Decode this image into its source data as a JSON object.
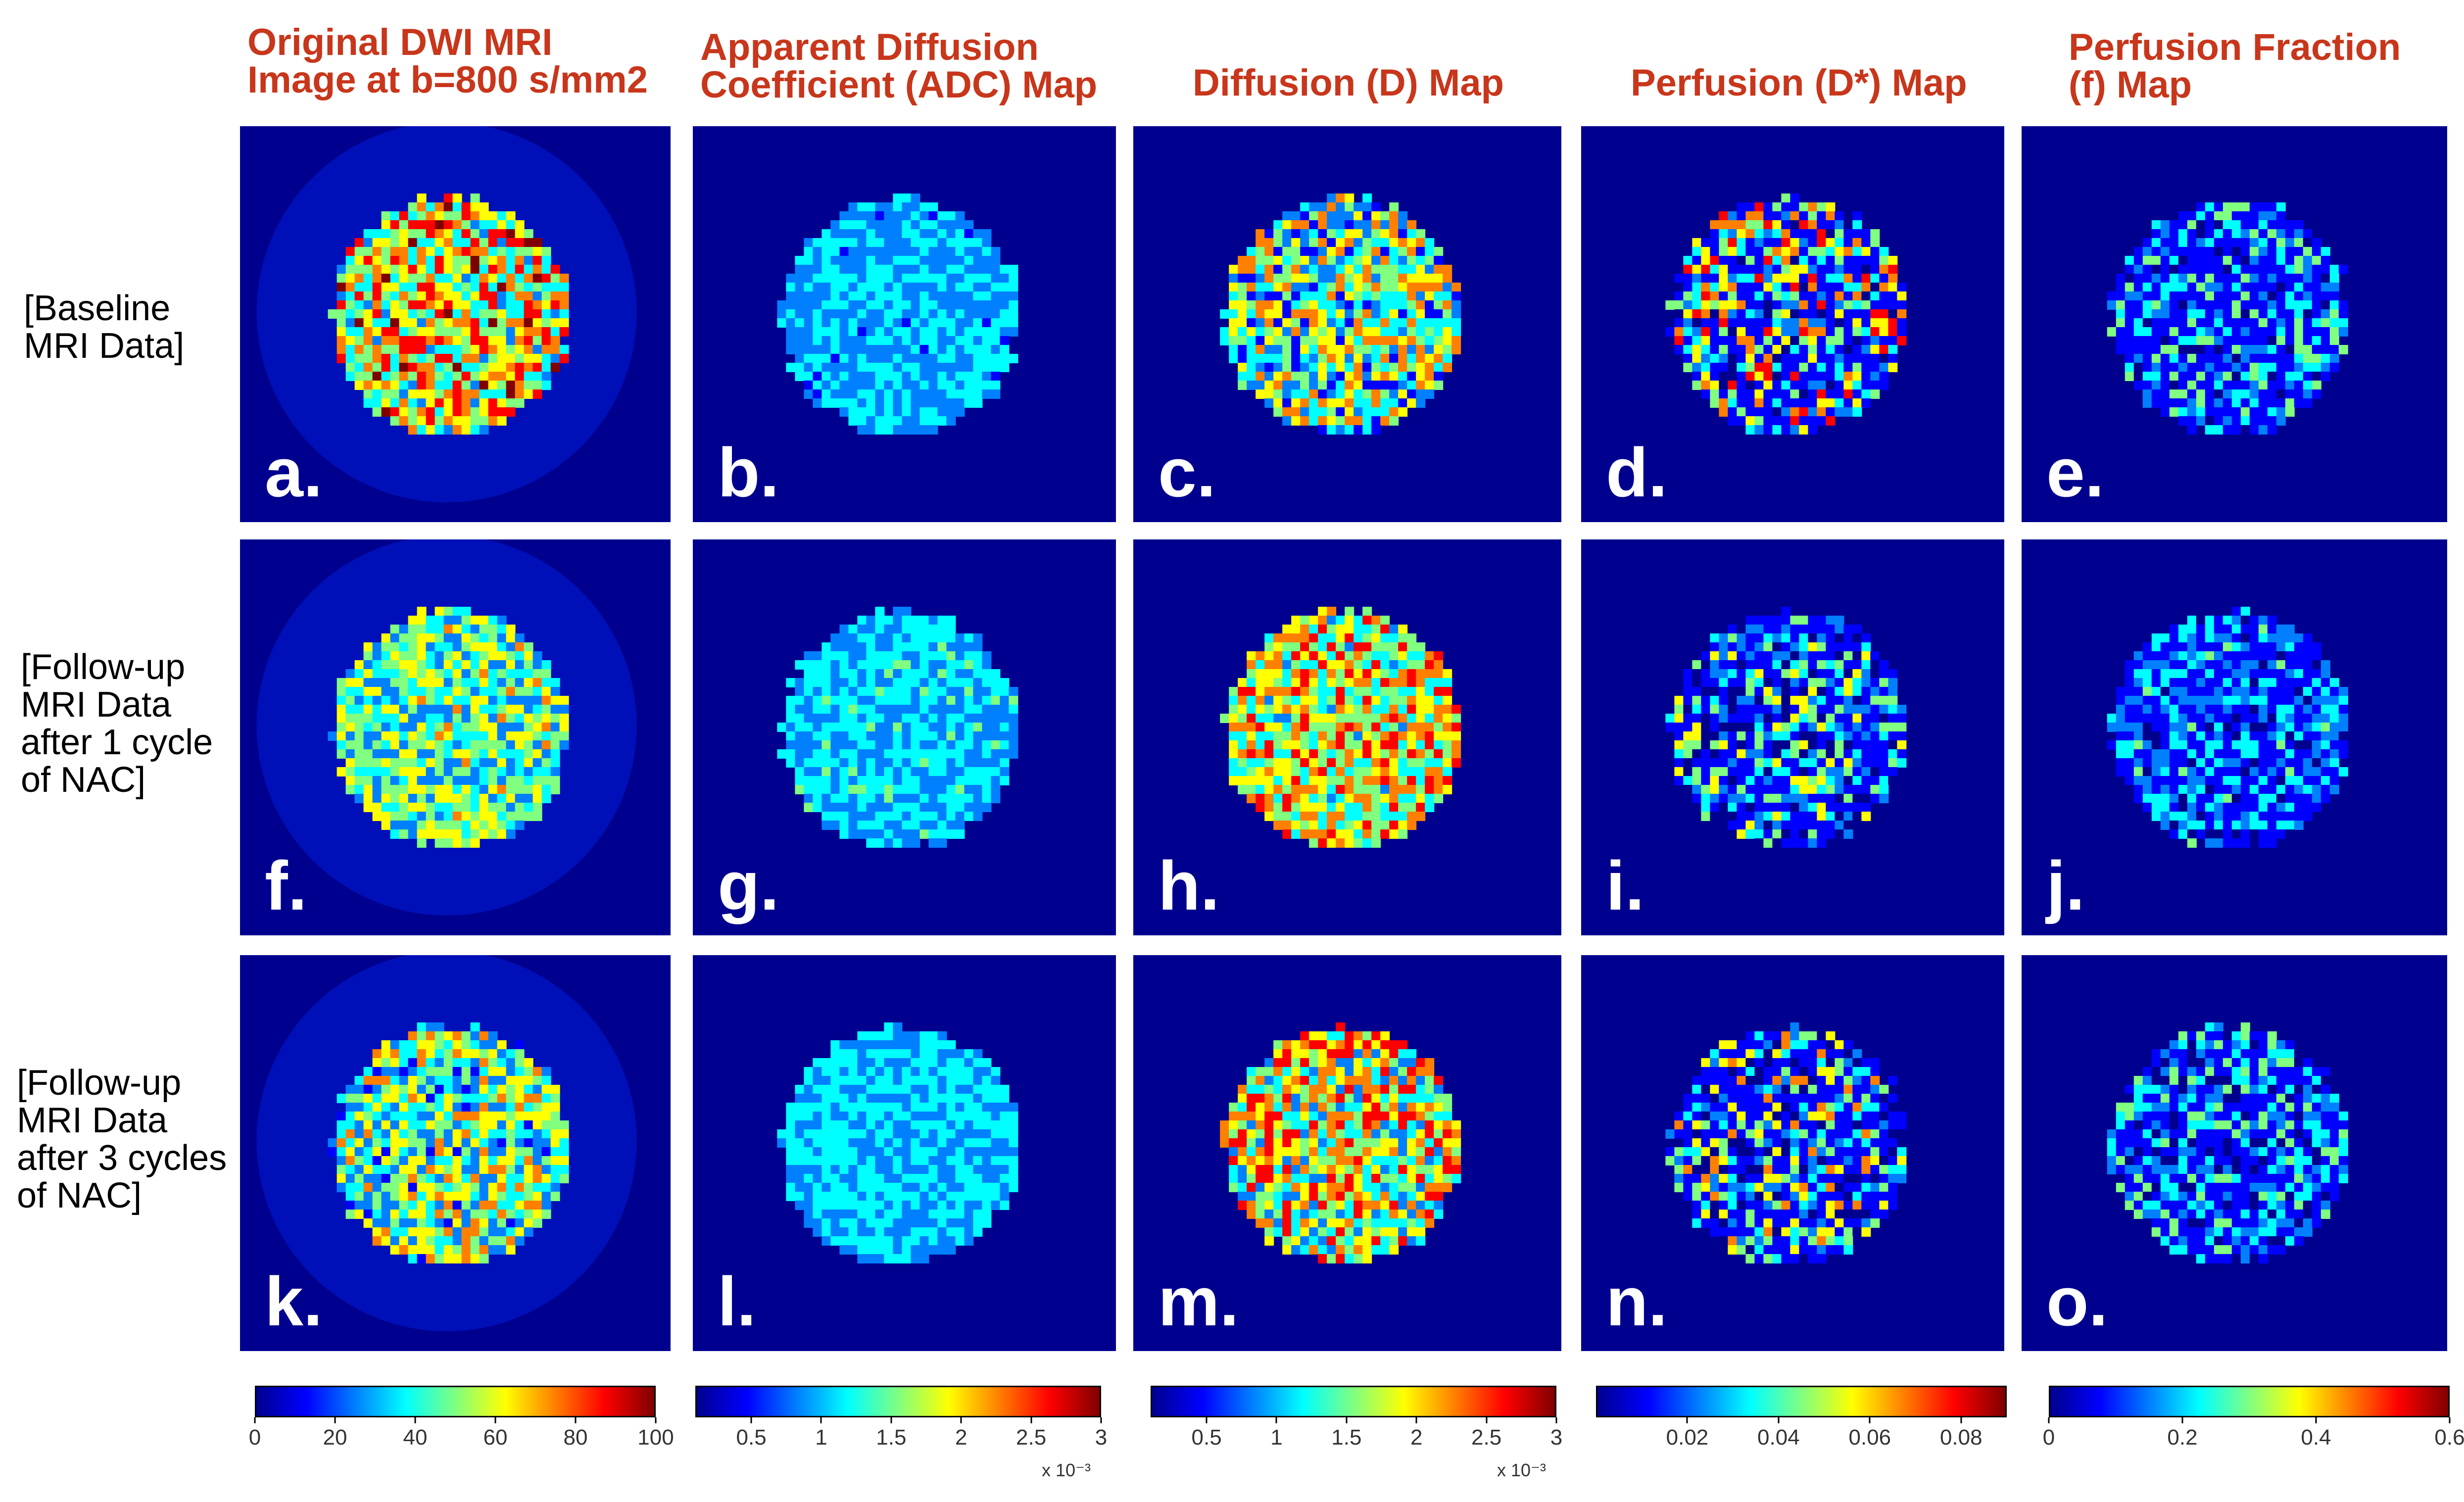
{
  "column_titles": [
    {
      "line1": "Original DWI MRI",
      "line2": "Image at b=800 s/mm2"
    },
    {
      "line1": "Apparent Diffusion",
      "line2": "Coefficient (ADC) Map"
    },
    {
      "line1": "Diffusion (D) Map",
      "line2": ""
    },
    {
      "line1": "Perfusion (D*) Map",
      "line2": ""
    },
    {
      "line1": "Perfusion Fraction",
      "line2": "(f) Map"
    }
  ],
  "row_labels": [
    {
      "lines": [
        "[Baseline",
        "MRI Data]"
      ]
    },
    {
      "lines": [
        "[Follow-up",
        "MRI Data",
        "after 1 cycle",
        "of NAC]"
      ]
    },
    {
      "lines": [
        "[Follow-up",
        "MRI Data",
        "after 3 cycles",
        "of NAC]"
      ]
    }
  ],
  "panel_letters": [
    [
      "a.",
      "b.",
      "c.",
      "d.",
      "e."
    ],
    [
      "f.",
      "g.",
      "h.",
      "i.",
      "j."
    ],
    [
      "k.",
      "l.",
      "m.",
      "n.",
      "o."
    ]
  ],
  "colorbars": [
    {
      "ticks": [
        "0",
        "20",
        "40",
        "60",
        "80",
        "100"
      ],
      "values": [
        0,
        20,
        40,
        60,
        80,
        100
      ],
      "min": 0,
      "max": 100,
      "exponent": ""
    },
    {
      "ticks": [
        "0.5",
        "1",
        "1.5",
        "2",
        "2.5",
        "3"
      ],
      "values": [
        0.5,
        1,
        1.5,
        2,
        2.5,
        3
      ],
      "min": 0.1,
      "max": 3,
      "exponent": "x 10⁻³"
    },
    {
      "ticks": [
        "0.5",
        "1",
        "1.5",
        "2",
        "2.5",
        "3"
      ],
      "values": [
        0.5,
        1,
        1.5,
        2,
        2.5,
        3
      ],
      "min": 0.1,
      "max": 3,
      "exponent": "x 10⁻³"
    },
    {
      "ticks": [
        "0.02",
        "0.04",
        "0.06",
        "0.08"
      ],
      "values": [
        0.02,
        0.04,
        0.06,
        0.08
      ],
      "min": 0,
      "max": 0.09,
      "exponent": ""
    },
    {
      "ticks": [
        "0",
        "0.2",
        "0.4",
        "0.6"
      ],
      "values": [
        0,
        0.2,
        0.4,
        0.6
      ],
      "min": 0,
      "max": 0.6,
      "exponent": ""
    }
  ],
  "colors": {
    "title_red": "#c8361b",
    "background_blue": "#00008f",
    "jet_gradient": [
      "#00008f",
      "#0000ff",
      "#0080ff",
      "#00ffff",
      "#80ff80",
      "#ffff00",
      "#ff8000",
      "#ff0000",
      "#800000"
    ]
  }
}
